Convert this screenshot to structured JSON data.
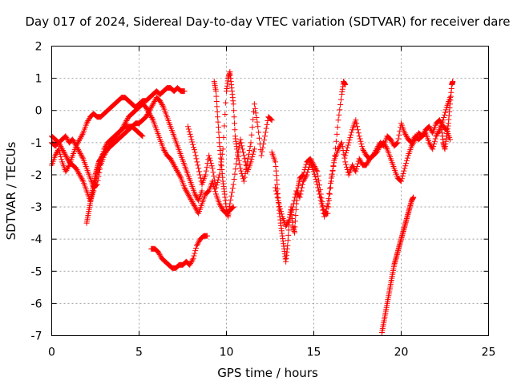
{
  "chart_data": {
    "type": "scatter",
    "title": "Day 017 of 2024, Sidereal Day-to-day VTEC variation (SDTVAR) for receiver dare",
    "xlabel": "GPS time / hours",
    "ylabel": "SDTVAR / TECUs",
    "xlim": [
      0,
      25
    ],
    "ylim": [
      -7,
      2
    ],
    "xticks": [
      0,
      5,
      10,
      15,
      20,
      25
    ],
    "yticks": [
      2,
      1,
      0,
      -1,
      -2,
      -3,
      -4,
      -5,
      -6,
      -7
    ],
    "grid": true,
    "marker": "plus",
    "series_color": "#ff0000",
    "series": [
      {
        "name": "trace-1",
        "x": [
          0.0,
          0.2,
          0.4,
          0.6,
          0.8,
          1.0,
          1.2,
          1.4,
          1.6,
          1.8,
          2.0,
          2.2,
          2.4,
          2.6,
          2.8,
          3.0,
          3.2,
          3.4,
          3.6,
          3.8,
          4.0,
          4.2,
          4.4,
          4.6,
          4.8,
          5.0,
          5.2,
          5.4,
          5.6,
          5.8,
          6.0,
          6.2,
          6.4,
          6.6,
          6.8,
          7.0,
          7.2,
          7.4,
          7.6
        ],
        "y": [
          -1.7,
          -1.4,
          -1.2,
          -1.6,
          -1.9,
          -1.7,
          -1.4,
          -1.1,
          -0.9,
          -0.7,
          -0.4,
          -0.2,
          -0.1,
          -0.2,
          -0.2,
          -0.1,
          0.0,
          0.1,
          0.2,
          0.3,
          0.4,
          0.4,
          0.3,
          0.2,
          0.1,
          0.2,
          0.3,
          0.3,
          0.4,
          0.5,
          0.6,
          0.5,
          0.6,
          0.7,
          0.7,
          0.6,
          0.7,
          0.6,
          0.6
        ]
      },
      {
        "name": "trace-2",
        "x": [
          0.0,
          0.2,
          0.4,
          0.6,
          0.8,
          1.0,
          1.2,
          1.4,
          1.6,
          1.8,
          2.0,
          2.2,
          2.4,
          2.6,
          2.8,
          3.0,
          3.2,
          3.4,
          3.6,
          3.8,
          4.0,
          4.2,
          4.4,
          4.6,
          4.8,
          5.0,
          5.2,
          5.4,
          5.6,
          5.8,
          6.0,
          6.2,
          6.4,
          6.6,
          6.8,
          7.0,
          7.2,
          7.4,
          7.6,
          7.8,
          8.0,
          8.2,
          8.4,
          8.6,
          8.8,
          9.0,
          9.2,
          9.4,
          9.6,
          9.8,
          10.0,
          10.2,
          10.4
        ],
        "y": [
          -1.0,
          -1.1,
          -1.0,
          -0.9,
          -0.8,
          -1.0,
          -0.9,
          -1.1,
          -1.3,
          -1.5,
          -1.8,
          -2.1,
          -2.4,
          -2.3,
          -1.7,
          -1.4,
          -1.2,
          -1.0,
          -0.9,
          -0.7,
          -0.6,
          -0.4,
          -0.2,
          -0.1,
          0.0,
          0.1,
          0.2,
          0.1,
          -0.1,
          -0.3,
          -0.6,
          -0.9,
          -1.2,
          -1.4,
          -1.5,
          -1.7,
          -1.9,
          -2.1,
          -2.4,
          -2.6,
          -2.8,
          -3.0,
          -3.2,
          -2.9,
          -2.6,
          -2.5,
          -2.2,
          -2.6,
          -2.9,
          -3.1,
          -3.2,
          -3.1,
          -3.0
        ]
      },
      {
        "name": "trace-3",
        "x": [
          0.0,
          0.2,
          0.4,
          0.6,
          0.8,
          1.0,
          1.2,
          1.4,
          1.6,
          1.8,
          2.0,
          2.2,
          2.4,
          2.6,
          2.8,
          3.0,
          3.2,
          3.4,
          3.6,
          3.8,
          4.0,
          4.2,
          4.4,
          4.6,
          4.8,
          5.0,
          5.2
        ],
        "y": [
          -0.8,
          -0.9,
          -1.0,
          -1.2,
          -1.4,
          -1.6,
          -1.7,
          -1.8,
          -2.0,
          -2.2,
          -2.5,
          -2.8,
          -2.5,
          -2.0,
          -1.6,
          -1.2,
          -1.0,
          -0.9,
          -0.8,
          -0.7,
          -0.6,
          -0.5,
          -0.5,
          -0.5,
          -0.6,
          -0.7,
          -0.8
        ]
      },
      {
        "name": "trace-4",
        "x": [
          2.0,
          2.1,
          2.2,
          2.3,
          2.4,
          2.5,
          2.6,
          2.7,
          2.8,
          3.0,
          3.2,
          3.4,
          3.6,
          3.8,
          4.0,
          4.2,
          4.4,
          4.6,
          4.8,
          5.0,
          5.2,
          5.4,
          5.6,
          5.8,
          6.0,
          6.2,
          6.4,
          6.6,
          6.8,
          7.0,
          7.2,
          7.4,
          7.6,
          7.8,
          8.0,
          8.2,
          8.4,
          8.6
        ],
        "y": [
          -3.5,
          -3.2,
          -2.9,
          -2.6,
          -2.3,
          -2.0,
          -1.8,
          -1.6,
          -1.5,
          -1.3,
          -1.2,
          -1.1,
          -1.0,
          -0.9,
          -0.8,
          -0.7,
          -0.6,
          -0.5,
          -0.4,
          -0.4,
          -0.3,
          -0.2,
          0.0,
          0.2,
          0.4,
          0.3,
          0.1,
          -0.2,
          -0.5,
          -0.8,
          -1.1,
          -1.4,
          -1.7,
          -2.0,
          -2.3,
          -2.6,
          -2.8,
          -2.5
        ]
      },
      {
        "name": "trace-5",
        "x": [
          5.7,
          5.9,
          6.1,
          6.3,
          6.5,
          6.7,
          6.9,
          7.1,
          7.3,
          7.5,
          7.7,
          7.9,
          8.1,
          8.3,
          8.5,
          8.7,
          8.9
        ],
        "y": [
          -4.3,
          -4.3,
          -4.4,
          -4.6,
          -4.7,
          -4.8,
          -4.9,
          -4.9,
          -4.8,
          -4.8,
          -4.7,
          -4.8,
          -4.6,
          -4.2,
          -4.0,
          -3.9,
          -3.9
        ]
      },
      {
        "name": "trace-6",
        "x": [
          7.8,
          8.0,
          8.2,
          8.4,
          8.6,
          8.8,
          9.0,
          9.2,
          9.4,
          9.6,
          9.8,
          10.0,
          10.1,
          10.2,
          10.3,
          10.4,
          10.5,
          10.6,
          10.8,
          11.0,
          11.2,
          11.4,
          11.6,
          11.8,
          12.0,
          12.2,
          12.4,
          12.6
        ],
        "y": [
          -0.5,
          -0.9,
          -1.3,
          -1.8,
          -2.3,
          -2.0,
          -1.4,
          -1.8,
          -2.4,
          -2.0,
          -1.2,
          0.6,
          1.0,
          1.2,
          0.7,
          0.2,
          -0.8,
          -1.2,
          -1.8,
          -2.2,
          -1.6,
          -1.0,
          0.2,
          -0.5,
          -1.4,
          -0.8,
          -0.2,
          -0.3
        ]
      },
      {
        "name": "trace-7",
        "x": [
          9.3,
          9.4,
          9.5,
          9.6,
          9.7,
          9.8,
          9.9,
          10.0,
          10.1,
          10.2,
          10.4,
          10.6,
          10.8,
          11.0,
          11.2,
          11.4,
          11.6
        ],
        "y": [
          0.9,
          0.6,
          -0.2,
          -1.0,
          -1.6,
          -2.2,
          -2.6,
          -3.1,
          -3.3,
          -2.9,
          -2.3,
          -1.5,
          -0.9,
          -1.4,
          -1.9,
          -1.6,
          -1.2
        ]
      },
      {
        "name": "trace-8",
        "x": [
          12.6,
          12.8,
          12.9,
          13.0,
          13.1,
          13.2,
          13.3,
          13.4,
          13.5,
          13.6,
          13.7,
          13.8,
          13.9,
          14.0,
          14.1,
          14.2,
          14.4,
          14.6,
          14.8,
          15.0,
          15.2,
          15.4,
          15.6,
          15.8,
          16.0,
          16.2,
          16.4,
          16.6,
          16.7,
          16.8
        ],
        "y": [
          -1.3,
          -1.6,
          -2.3,
          -3.0,
          -3.5,
          -3.9,
          -4.3,
          -4.7,
          -4.2,
          -3.4,
          -3.0,
          -3.6,
          -3.8,
          -2.9,
          -2.4,
          -2.1,
          -2.0,
          -1.6,
          -1.5,
          -1.7,
          -1.9,
          -2.6,
          -3.2,
          -3.2,
          -2.2,
          -1.4,
          -0.3,
          0.5,
          0.9,
          0.8
        ]
      },
      {
        "name": "trace-9",
        "x": [
          12.8,
          13.0,
          13.2,
          13.4,
          13.6,
          13.8,
          14.0,
          14.2,
          14.4,
          14.6,
          14.8,
          15.0,
          15.2,
          15.4,
          15.6,
          15.8,
          16.0,
          16.2,
          16.4,
          16.6,
          16.8,
          17.0,
          17.2,
          17.4,
          17.6,
          17.8,
          18.0,
          18.2,
          18.4,
          18.6,
          18.8,
          19.0,
          19.2,
          19.4,
          19.6,
          19.8,
          20.0,
          20.2,
          20.4,
          20.6,
          20.8,
          21.0,
          21.2,
          21.4,
          21.6,
          21.8,
          22.0,
          22.2,
          22.4,
          22.6,
          22.8
        ],
        "y": [
          -2.4,
          -2.9,
          -3.3,
          -3.6,
          -3.4,
          -3.0,
          -2.5,
          -2.7,
          -2.2,
          -2.0,
          -1.6,
          -1.9,
          -2.3,
          -2.8,
          -3.3,
          -2.9,
          -2.1,
          -1.5,
          -1.2,
          -1.0,
          -1.6,
          -2.0,
          -1.7,
          -1.9,
          -1.5,
          -1.7,
          -1.7,
          -1.5,
          -1.4,
          -1.3,
          -1.1,
          -1.0,
          -1.2,
          -1.5,
          -1.8,
          -2.1,
          -2.2,
          -1.8,
          -1.4,
          -1.1,
          -0.9,
          -0.7,
          -0.8,
          -0.6,
          -0.5,
          -0.7,
          -0.4,
          -0.3,
          -0.5,
          -0.6,
          -0.9
        ]
      },
      {
        "name": "trace-10",
        "x": [
          16.8,
          17.0,
          17.2,
          17.4,
          17.6,
          17.8,
          18.0,
          18.2,
          18.4,
          18.6,
          18.8,
          19.0,
          19.2,
          19.4,
          19.6,
          19.8,
          20.0,
          20.2,
          20.4,
          20.6,
          20.8,
          21.0,
          21.2,
          21.4,
          21.6,
          21.8,
          22.0,
          22.2,
          22.4,
          22.6,
          22.8
        ],
        "y": [
          -1.4,
          -1.0,
          -0.6,
          -0.3,
          -0.8,
          -1.2,
          -1.4,
          -1.5,
          -1.4,
          -1.2,
          -1.0,
          -1.1,
          -0.8,
          -0.9,
          -1.1,
          -1.0,
          -0.4,
          -0.7,
          -0.9,
          -1.0,
          -0.8,
          -0.9,
          -0.8,
          -0.7,
          -1.0,
          -1.2,
          -0.8,
          -0.6,
          -0.3,
          0.1,
          0.4
        ]
      },
      {
        "name": "trace-11",
        "x": [
          18.9,
          19.0,
          19.1,
          19.2,
          19.3,
          19.4,
          19.5,
          19.6,
          19.7,
          19.8,
          19.9,
          20.0,
          20.1,
          20.2,
          20.3,
          20.4,
          20.5,
          20.6,
          20.7
        ],
        "y": [
          -6.9,
          -6.6,
          -6.3,
          -6.0,
          -5.7,
          -5.4,
          -5.1,
          -4.8,
          -4.6,
          -4.4,
          -4.2,
          -4.0,
          -3.8,
          -3.6,
          -3.4,
          -3.2,
          -3.0,
          -2.8,
          -2.7
        ]
      },
      {
        "name": "trace-12",
        "x": [
          22.3,
          22.4,
          22.5,
          22.6,
          22.7,
          22.8,
          22.9,
          22.95
        ],
        "y": [
          -0.5,
          -1.0,
          -1.2,
          -0.8,
          -0.4,
          0.2,
          0.8,
          0.9
        ]
      }
    ]
  }
}
